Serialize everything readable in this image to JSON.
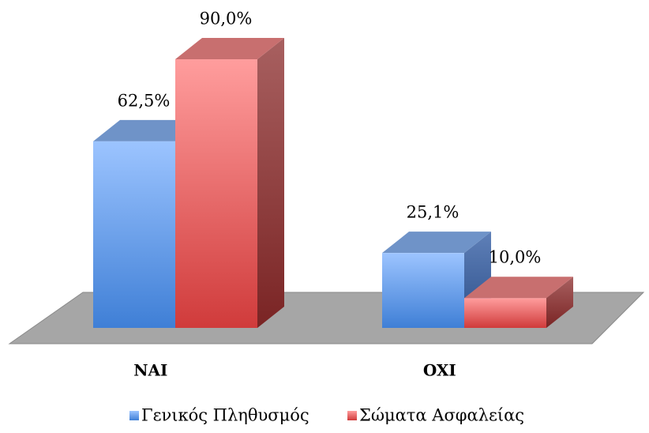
{
  "chart_data": {
    "type": "bar3d",
    "categories": [
      "NAI",
      "OXI"
    ],
    "series": [
      {
        "name": "Γενικός Πληθυσμός",
        "color": "#4f86d9",
        "values": [
          62.5,
          25.1
        ],
        "value_labels": [
          "62,5%",
          "25,1%"
        ]
      },
      {
        "name": "Σώματα Ασφαλείας",
        "color": "#d94a4a",
        "values": [
          90.0,
          10.0
        ],
        "value_labels": [
          "90,0%",
          "10,0%"
        ]
      }
    ],
    "legend": "bottom"
  }
}
